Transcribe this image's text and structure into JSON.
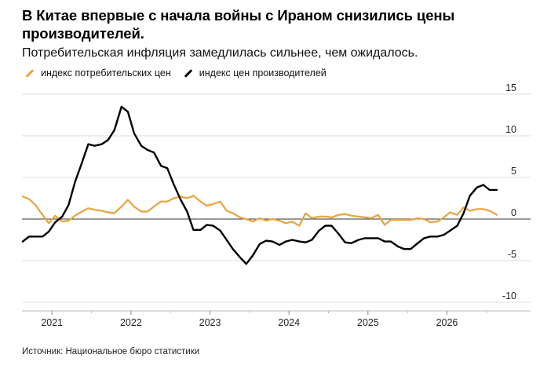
{
  "header": {
    "title": "В Китае впервые с начала войны с Ираном снизились цены производителей.",
    "subtitle": "Потребительская инфляция замедлилась сильнее, чем ожидалось."
  },
  "footer": {
    "source": "Источник: Национальное бюро статистики"
  },
  "chart_data": {
    "type": "line",
    "ylim": [
      -10,
      15
    ],
    "xlim": [
      2020.62,
      2026.8
    ],
    "y_ticks": [
      15,
      10,
      5,
      0,
      -5,
      -10
    ],
    "y_tick_labels": [
      "15",
      "10",
      "5",
      "0",
      "-5",
      "-10"
    ],
    "x_ticks": [
      2021,
      2022,
      2023,
      2024,
      2025,
      2026
    ],
    "x_tick_labels": [
      "2021",
      "2022",
      "2023",
      "2024",
      "2025",
      "2026"
    ],
    "grid": true,
    "legend_position": "top-left",
    "series": [
      {
        "name": "индекс потребительских цен",
        "color": "#E8A33D",
        "x": [
          2020.63,
          2020.71,
          2020.79,
          2020.88,
          2020.96,
          2021.04,
          2021.13,
          2021.21,
          2021.29,
          2021.38,
          2021.46,
          2021.54,
          2021.63,
          2021.71,
          2021.79,
          2021.88,
          2021.96,
          2022.04,
          2022.13,
          2022.21,
          2022.29,
          2022.38,
          2022.46,
          2022.54,
          2022.63,
          2022.71,
          2022.79,
          2022.88,
          2022.96,
          2023.04,
          2023.13,
          2023.21,
          2023.29,
          2023.38,
          2023.46,
          2023.54,
          2023.63,
          2023.71,
          2023.79,
          2023.88,
          2023.96,
          2024.04,
          2024.13,
          2024.21,
          2024.29,
          2024.38,
          2024.46,
          2024.54,
          2024.63,
          2024.71,
          2024.79,
          2024.88,
          2024.96,
          2025.04,
          2025.13,
          2025.21,
          2025.29,
          2025.38,
          2025.46,
          2025.54,
          2025.63,
          2025.71,
          2025.79,
          2025.88,
          2025.96,
          2026.04,
          2026.13,
          2026.21,
          2026.29,
          2026.38,
          2026.46,
          2026.54,
          2026.63
        ],
        "values": [
          2.7,
          2.4,
          1.7,
          0.5,
          -0.5,
          0.4,
          -0.3,
          -0.2,
          0.4,
          0.9,
          1.3,
          1.1,
          1.0,
          0.8,
          0.7,
          1.5,
          2.3,
          1.5,
          0.9,
          0.9,
          1.5,
          2.1,
          2.1,
          2.5,
          2.7,
          2.5,
          2.8,
          2.1,
          1.6,
          1.8,
          2.1,
          1.0,
          0.7,
          0.2,
          0.0,
          -0.3,
          0.1,
          -0.2,
          0.0,
          -0.2,
          -0.5,
          -0.3,
          -0.8,
          0.7,
          0.1,
          0.3,
          0.3,
          0.2,
          0.5,
          0.6,
          0.4,
          0.3,
          0.2,
          0.1,
          0.5,
          -0.7,
          -0.1,
          -0.1,
          -0.1,
          -0.1,
          0.1,
          0.0,
          -0.4,
          -0.3,
          0.2,
          0.8,
          0.5,
          1.4,
          1.0,
          1.2,
          1.2,
          1.0,
          0.5
        ]
      },
      {
        "name": "индекс цен производителей",
        "color": "#000000",
        "x": [
          2020.63,
          2020.71,
          2020.79,
          2020.88,
          2020.96,
          2021.04,
          2021.13,
          2021.21,
          2021.29,
          2021.38,
          2021.46,
          2021.54,
          2021.63,
          2021.71,
          2021.79,
          2021.88,
          2021.96,
          2022.04,
          2022.13,
          2022.21,
          2022.29,
          2022.38,
          2022.46,
          2022.54,
          2022.63,
          2022.71,
          2022.79,
          2022.88,
          2022.96,
          2023.04,
          2023.13,
          2023.21,
          2023.29,
          2023.38,
          2023.46,
          2023.54,
          2023.63,
          2023.71,
          2023.79,
          2023.88,
          2023.96,
          2024.04,
          2024.13,
          2024.21,
          2024.29,
          2024.38,
          2024.46,
          2024.54,
          2024.63,
          2024.71,
          2024.79,
          2024.88,
          2024.96,
          2025.04,
          2025.13,
          2025.21,
          2025.29,
          2025.38,
          2025.46,
          2025.54,
          2025.63,
          2025.71,
          2025.79,
          2025.88,
          2025.96,
          2026.04,
          2026.13,
          2026.21,
          2026.29,
          2026.38,
          2026.46,
          2026.54,
          2026.63
        ],
        "values": [
          -2.7,
          -2.1,
          -2.1,
          -2.1,
          -1.5,
          -0.4,
          0.3,
          1.7,
          4.4,
          6.8,
          9.0,
          8.8,
          9.0,
          9.5,
          10.7,
          13.5,
          12.9,
          10.3,
          8.8,
          8.3,
          8.0,
          6.4,
          6.1,
          4.2,
          2.3,
          0.9,
          -1.3,
          -1.3,
          -0.7,
          -0.8,
          -1.4,
          -2.5,
          -3.6,
          -4.6,
          -5.4,
          -4.4,
          -3.0,
          -2.6,
          -2.7,
          -3.1,
          -2.7,
          -2.5,
          -2.7,
          -2.8,
          -2.5,
          -1.4,
          -0.8,
          -0.8,
          -1.8,
          -2.8,
          -2.9,
          -2.5,
          -2.3,
          -2.3,
          -2.3,
          -2.7,
          -2.7,
          -3.3,
          -3.6,
          -3.6,
          -2.9,
          -2.3,
          -2.1,
          -2.1,
          -1.9,
          -1.4,
          -0.8,
          0.7,
          2.8,
          3.8,
          4.1,
          3.5,
          3.5
        ]
      }
    ]
  }
}
